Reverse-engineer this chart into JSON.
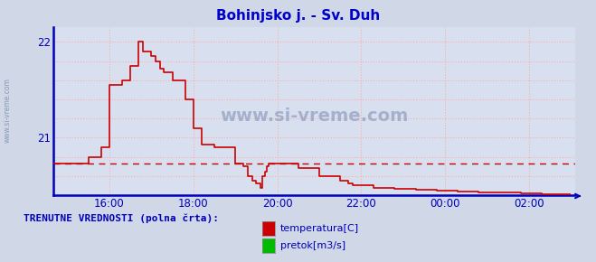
{
  "title": "Bohinjsko j. - Sv. Duh",
  "title_color": "#0000cc",
  "bg_color": "#d0d8e8",
  "plot_bg_color": "#d8e0f0",
  "grid_color": "#ffaaaa",
  "axis_color": "#0000bb",
  "watermark": "www.si-vreme.com",
  "ytick_show": [
    21,
    22
  ],
  "ylim": [
    20.4,
    22.15
  ],
  "xlim": [
    14.67,
    27.1
  ],
  "xtick_labels": [
    "16:00",
    "18:00",
    "20:00",
    "22:00",
    "00:00",
    "02:00"
  ],
  "xtick_positions": [
    16,
    18,
    20,
    22,
    24,
    26
  ],
  "grid_yticks": [
    20.6,
    20.8,
    21.0,
    21.2,
    21.4,
    21.6,
    21.8,
    22.0
  ],
  "avg_line_y": 20.73,
  "avg_line_color": "#cc0000",
  "temp_line_color": "#cc0000",
  "legend_label_temp": "temperatura[C]",
  "legend_label_pretok": "pretok[m3/s]",
  "legend_text": "TRENUTNE VREDNOSTI (polna črta):",
  "temp_x": [
    14.67,
    15.5,
    15.5,
    15.8,
    15.8,
    16.0,
    16.0,
    16.3,
    16.3,
    16.5,
    16.5,
    16.7,
    16.7,
    16.8,
    16.8,
    17.0,
    17.0,
    17.1,
    17.1,
    17.2,
    17.2,
    17.3,
    17.3,
    17.5,
    17.5,
    17.8,
    17.8,
    18.0,
    18.0,
    18.2,
    18.2,
    18.5,
    18.5,
    19.0,
    19.0,
    19.2,
    19.2,
    19.3,
    19.3,
    19.4,
    19.4,
    19.5,
    19.5,
    19.6,
    19.6,
    19.65,
    19.65,
    19.7,
    19.7,
    19.75,
    19.75,
    19.8,
    19.8,
    19.85,
    19.85,
    19.9,
    19.9,
    19.95,
    19.95,
    20.0,
    20.0,
    20.1,
    20.1,
    20.2,
    20.2,
    20.5,
    20.5,
    21.0,
    21.0,
    21.5,
    21.5,
    21.7,
    21.7,
    21.8,
    21.8,
    22.0,
    22.0,
    22.3,
    22.3,
    22.8,
    22.8,
    23.3,
    23.3,
    23.8,
    23.8,
    24.3,
    24.3,
    24.8,
    24.8,
    25.3,
    25.3,
    25.8,
    25.8,
    26.3,
    26.3,
    27.0
  ],
  "temp_y": [
    20.73,
    20.73,
    20.8,
    20.8,
    20.9,
    20.9,
    21.55,
    21.55,
    21.6,
    21.6,
    21.75,
    21.75,
    22.0,
    22.0,
    21.9,
    21.9,
    21.85,
    21.85,
    21.8,
    21.8,
    21.72,
    21.72,
    21.68,
    21.68,
    21.6,
    21.6,
    21.4,
    21.4,
    21.1,
    21.1,
    20.93,
    20.93,
    20.9,
    20.9,
    20.73,
    20.73,
    20.7,
    20.7,
    20.6,
    20.6,
    20.55,
    20.55,
    20.52,
    20.52,
    20.48,
    20.48,
    20.6,
    20.6,
    20.65,
    20.65,
    20.7,
    20.7,
    20.73,
    20.73,
    20.73,
    20.73,
    20.73,
    20.73,
    20.73,
    20.73,
    20.73,
    20.73,
    20.73,
    20.73,
    20.73,
    20.73,
    20.68,
    20.68,
    20.6,
    20.6,
    20.55,
    20.55,
    20.52,
    20.52,
    20.5,
    20.5,
    20.5,
    20.5,
    20.48,
    20.48,
    20.47,
    20.47,
    20.46,
    20.46,
    20.45,
    20.45,
    20.44,
    20.44,
    20.43,
    20.43,
    20.43,
    20.43,
    20.42,
    20.42,
    20.41,
    20.41
  ]
}
